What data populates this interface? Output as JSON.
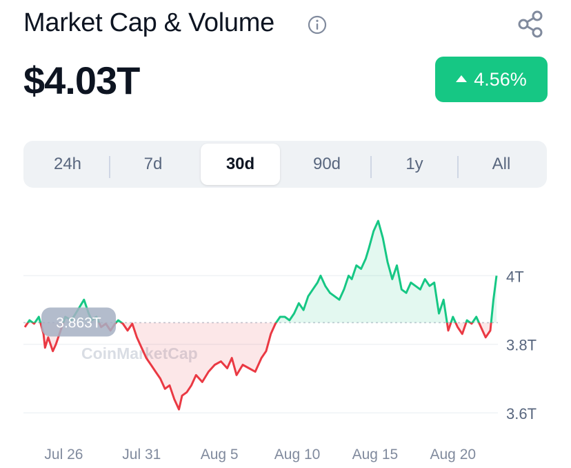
{
  "header": {
    "title": "Market Cap & Volume",
    "info_icon": "info-circle-icon",
    "share_icon": "share-icon"
  },
  "price": "$4.03T",
  "change": {
    "value": "4.56%",
    "direction": "up",
    "color": "#16c784"
  },
  "tabs": [
    {
      "label": "24h",
      "active": false
    },
    {
      "label": "7d",
      "active": false
    },
    {
      "label": "30d",
      "active": true
    },
    {
      "label": "90d",
      "active": false
    },
    {
      "label": "1y",
      "active": false
    },
    {
      "label": "All",
      "active": false
    }
  ],
  "watermark": "CoinMarketCap",
  "chart_data": {
    "type": "area",
    "title": "",
    "xlabel": "",
    "ylabel": "",
    "baseline": 3.863,
    "baseline_label": "3.863T",
    "ylim": [
      3.58,
      4.17
    ],
    "yticks": [
      {
        "value": 4.0,
        "label": "4T"
      },
      {
        "value": 3.8,
        "label": "3.8T"
      },
      {
        "value": 3.6,
        "label": "3.6T"
      }
    ],
    "xticks": [
      {
        "day": 2.5,
        "label": "Jul 26"
      },
      {
        "day": 7.5,
        "label": "Jul 31"
      },
      {
        "day": 12.5,
        "label": "Aug 5"
      },
      {
        "day": 17.5,
        "label": "Aug 10"
      },
      {
        "day": 22.5,
        "label": "Aug 15"
      },
      {
        "day": 27.5,
        "label": "Aug 20"
      }
    ],
    "above_color": "#16c784",
    "below_color": "#ea3943",
    "series": [
      {
        "x": [
          0,
          0.3,
          0.6,
          0.9,
          1.2,
          1.3,
          1.5,
          1.8,
          2.0,
          2.3,
          2.6,
          3.0,
          3.4,
          3.8,
          4.1,
          4.3,
          4.6,
          4.9,
          5.2,
          5.5,
          5.8,
          6.0,
          6.3,
          6.6,
          6.9,
          7.2,
          7.5,
          7.8,
          8.1,
          8.4,
          8.7,
          9.0,
          9.3,
          9.6,
          9.9,
          10.1,
          10.4,
          10.7,
          11.0,
          11.4,
          11.8,
          12.2,
          12.6,
          13.0,
          13.3,
          13.6,
          14.0,
          14.4,
          14.8,
          15.2,
          15.5,
          15.8,
          16.1,
          16.4,
          16.7,
          17.0,
          17.3,
          17.6,
          17.9,
          18.2,
          18.5,
          18.8,
          19.0,
          19.3,
          19.6,
          19.9,
          20.2,
          20.5,
          20.8,
          21.0,
          21.3,
          21.6,
          21.9,
          22.1,
          22.4,
          22.7,
          23.0,
          23.3,
          23.6,
          23.9,
          24.2,
          24.5,
          24.8,
          25.1,
          25.4,
          25.7,
          26.0,
          26.3,
          26.6,
          26.9,
          27.2,
          27.5,
          27.8,
          28.1,
          28.4,
          28.7,
          29.0,
          29.3,
          29.6,
          29.9,
          30.1,
          30.3
        ],
        "y": [
          3.85,
          3.87,
          3.86,
          3.88,
          3.83,
          3.79,
          3.82,
          3.78,
          3.8,
          3.84,
          3.88,
          3.87,
          3.9,
          3.93,
          3.89,
          3.87,
          3.88,
          3.85,
          3.86,
          3.84,
          3.86,
          3.87,
          3.86,
          3.84,
          3.86,
          3.82,
          3.79,
          3.76,
          3.74,
          3.72,
          3.7,
          3.67,
          3.68,
          3.64,
          3.61,
          3.65,
          3.66,
          3.68,
          3.71,
          3.69,
          3.72,
          3.74,
          3.75,
          3.73,
          3.76,
          3.71,
          3.74,
          3.73,
          3.72,
          3.76,
          3.78,
          3.83,
          3.86,
          3.88,
          3.88,
          3.87,
          3.89,
          3.92,
          3.9,
          3.94,
          3.96,
          3.98,
          4.0,
          3.97,
          3.95,
          3.94,
          3.93,
          3.96,
          4.0,
          3.99,
          4.03,
          4.02,
          4.05,
          4.08,
          4.13,
          4.16,
          4.11,
          4.04,
          3.99,
          4.03,
          3.96,
          3.95,
          3.98,
          3.97,
          3.96,
          3.99,
          3.97,
          3.98,
          3.89,
          3.93,
          3.84,
          3.88,
          3.85,
          3.83,
          3.87,
          3.86,
          3.88,
          3.85,
          3.82,
          3.84,
          3.93,
          4.0
        ]
      }
    ]
  }
}
